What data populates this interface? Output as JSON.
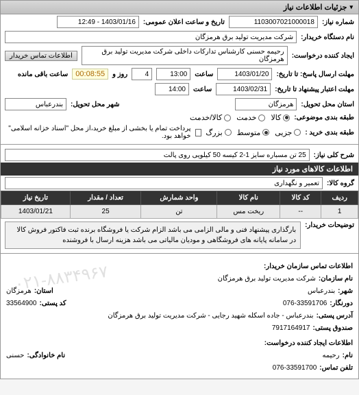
{
  "panel": {
    "title": "جزئیات اطلاعات نیاز"
  },
  "header": {
    "req_no_label": "شماره نیاز:",
    "req_no": "1103007021000018",
    "announce_label": "تاریخ و ساعت اعلان عمومی:",
    "announce": "1403/01/16 - 12:49",
    "buyer_label": "نام دستگاه خریدار:",
    "buyer": "شرکت مدیریت تولید برق هرمزگان",
    "creator_label": "ایجاد کننده درخواست:",
    "creator": "رحیمه حسنی کارشناس تدارکات داخلی شرکت مدیریت تولید برق هرمزگان",
    "contact_btn": "اطلاعات تماس خریدار"
  },
  "deadline": {
    "label": "مهلت ارسال پاسخ: تا تاریخ:",
    "date": "1403/01/20",
    "time_label": "ساعت",
    "time": "13:00",
    "days": "4",
    "days_label": "روز و",
    "remain": "00:08:55",
    "remain_label": "ساعت باقی مانده"
  },
  "validity": {
    "label": "مهلت اعتبار پیشنهاد تا تاریخ:",
    "date": "1403/02/31",
    "time_label": "ساعت",
    "time": "14:00"
  },
  "delivery": {
    "prov_label": "استان محل تحویل:",
    "prov": "هرمزگان",
    "city_label": "شهر محل تحویل:",
    "city": "بندرعباس"
  },
  "budget": {
    "label": "طبقه بندی موضوعی:",
    "opts": [
      "کالا",
      "خدمت",
      "کالا/خدمت"
    ],
    "selected": 0
  },
  "payment": {
    "label": "طبقه بندی خرید :",
    "opts": [
      "جزیی",
      "متوسط",
      "بزرگ"
    ],
    "selected": 1,
    "note": "پرداخت تمام یا بخشی از مبلغ خرید،از محل \"اسناد خزانه اسلامی\" خواهد بود."
  },
  "need": {
    "label": "شرح کلی نیاز:",
    "text": "25 تن مسباره سایز 1-2 کیسه 50 کیلویی روی پالت"
  },
  "goods": {
    "title": "اطلاعات کالاهای مورد نیاز",
    "group_label": "گروه کالا:",
    "group": "تعمیر و نگهداری",
    "cols": [
      "ردیف",
      "کد کالا",
      "نام کالا",
      "واحد شمارش",
      "تعداد / مقدار",
      "تاریخ نیاز"
    ],
    "rows": [
      [
        "1",
        "--",
        "ریخت مس",
        "تن",
        "25",
        "1403/01/21"
      ]
    ]
  },
  "explain": {
    "label": "توضیحات خریدار:",
    "text": "بارگذاری پیشنهاد فنی و مالی الزامی می باشد الزام شرکت یا فروشگاه برنده ثبت فاکتور فروش کالا در سامانه پایانه های فروشگاهی و مودیان مالیاتی می باشد هزینه ارسال با فروشنده"
  },
  "contact": {
    "title": "اطلاعات تماس سازمان خریدار:",
    "org_label": "نام سازمان:",
    "org": "شرکت مدیریت تولید برق هرمزگان",
    "city_label": "شهر:",
    "city": "بندرعباس",
    "prov_label": "استان:",
    "prov": "هرمزگان",
    "fax_label": "دورنگار:",
    "fax": "076-33591706",
    "post_label": "کد پستی:",
    "post": "33564900",
    "addr_label": "آدرس پستی:",
    "addr": "بندرعباس - جاده اسکله شهید رجایی - شرکت مدیریت تولید برق هرمزگان",
    "pobox_label": "صندوق پستی:",
    "pobox": "7917164917",
    "creator_title": "اطلاعات ایجاد کننده درخواست:",
    "name_label": "نام:",
    "name": "رحیمه",
    "lname_label": "نام خانوادگی:",
    "lname": "حسنی",
    "tel_label": "تلفن تماس:",
    "tel": "076-33591700",
    "watermark": "۰۲۱-۸۸۳۴۹۶۷"
  }
}
